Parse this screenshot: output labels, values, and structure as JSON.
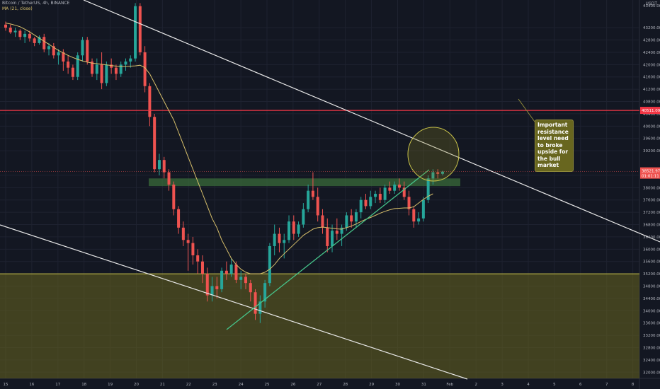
{
  "header": {
    "symbol_line": "Bitcoin / TetherUS, 4h, BINANCE",
    "indicator_line": "MA (21, close)"
  },
  "price_axis": {
    "unit": "USDT",
    "top_value": "43400.00"
  },
  "badges": {
    "resistance_price": "40511.09",
    "last_price": "38521.97",
    "countdown": "01:01:11"
  },
  "annotation": {
    "lines": [
      "Important",
      "resistance",
      "level need",
      "to broke",
      "upside for",
      "the bull",
      "market"
    ]
  },
  "colors": {
    "background": "#131722",
    "up": "#26a69a",
    "down": "#ef5350",
    "ma": "#d8c06b",
    "trendline": "#e8e8e8",
    "support_trend": "#46c48a",
    "resistance_line": "#f23645",
    "zone_fill": "#67651f",
    "demand_box": "#3a6b3a",
    "note_bg": "#68661f"
  },
  "chart_data": {
    "type": "candlestick",
    "symbol": "BTCUSDT",
    "timeframe": "4h",
    "exchange": "BINANCE",
    "y_range": [
      31800,
      44100
    ],
    "y_ticks": [
      32000,
      32400,
      32800,
      33200,
      33600,
      34000,
      34400,
      34800,
      35200,
      35600,
      36000,
      36400,
      36800,
      37200,
      37600,
      38000,
      38400,
      39200,
      39600,
      40000,
      40400,
      40800,
      41200,
      41600,
      42000,
      42400,
      42800,
      43200
    ],
    "x_tick_labels": [
      "15",
      "16",
      "17",
      "18",
      "19",
      "20",
      "21",
      "22",
      "23",
      "24",
      "25",
      "26",
      "27",
      "28",
      "29",
      "30",
      "31",
      "Feb",
      "2",
      "3",
      "4",
      "5",
      "6",
      "7",
      "8"
    ],
    "levels": {
      "resistance": 40511.09,
      "last_price": 38521.97
    },
    "zones": [
      {
        "name": "demand box",
        "from": 38050,
        "to": 38300
      },
      {
        "name": "support zone",
        "from": 31800,
        "to": 35200
      }
    ],
    "candles": [
      [
        43300,
        43400,
        43100,
        43200
      ],
      [
        43200,
        43300,
        43000,
        43050
      ],
      [
        43050,
        43200,
        42900,
        43100
      ],
      [
        43100,
        43150,
        42800,
        42900
      ],
      [
        42900,
        43100,
        42700,
        43000
      ],
      [
        43000,
        43100,
        42750,
        42850
      ],
      [
        42850,
        42900,
        42600,
        42700
      ],
      [
        42700,
        42950,
        42650,
        42900
      ],
      [
        42900,
        43000,
        42400,
        42500
      ],
      [
        42500,
        42700,
        42300,
        42600
      ],
      [
        42600,
        42700,
        42200,
        42300
      ],
      [
        42300,
        42500,
        42000,
        42400
      ],
      [
        42400,
        42500,
        41800,
        42100
      ],
      [
        42100,
        42300,
        41700,
        41900
      ],
      [
        41900,
        42000,
        41500,
        41600
      ],
      [
        41600,
        42400,
        41500,
        42300
      ],
      [
        42300,
        42900,
        42100,
        42800
      ],
      [
        42800,
        42900,
        42000,
        42100
      ],
      [
        42100,
        42200,
        41600,
        41700
      ],
      [
        41700,
        42200,
        41500,
        42000
      ],
      [
        42000,
        42400,
        41200,
        41400
      ],
      [
        41400,
        42100,
        41300,
        42000
      ],
      [
        42000,
        42200,
        41700,
        41900
      ],
      [
        41900,
        42000,
        41500,
        41700
      ],
      [
        41700,
        42100,
        41600,
        42000
      ],
      [
        42000,
        42200,
        41800,
        42100
      ],
      [
        42100,
        42300,
        41900,
        42200
      ],
      [
        42200,
        44000,
        42100,
        43900
      ],
      [
        43900,
        44000,
        42300,
        42400
      ],
      [
        42400,
        42600,
        41100,
        41300
      ],
      [
        41300,
        41400,
        40000,
        40300
      ],
      [
        40300,
        40400,
        38500,
        38600
      ],
      [
        38600,
        39100,
        38400,
        38900
      ],
      [
        38900,
        39000,
        38300,
        38500
      ],
      [
        38500,
        38600,
        37900,
        38100
      ],
      [
        38100,
        38200,
        37100,
        37300
      ],
      [
        37300,
        37400,
        36500,
        36700
      ],
      [
        36700,
        36900,
        36100,
        36300
      ],
      [
        36300,
        36500,
        35300,
        36200
      ],
      [
        36200,
        36400,
        35500,
        35800
      ],
      [
        35800,
        36000,
        35200,
        35600
      ],
      [
        35600,
        35800,
        34900,
        35200
      ],
      [
        35200,
        35400,
        34300,
        34500
      ],
      [
        34500,
        35100,
        34300,
        34800
      ],
      [
        34800,
        35100,
        34400,
        34700
      ],
      [
        34700,
        35400,
        34600,
        35300
      ],
      [
        35300,
        35600,
        35000,
        35200
      ],
      [
        35200,
        35700,
        35100,
        35500
      ],
      [
        35500,
        35600,
        34900,
        35000
      ],
      [
        35000,
        35300,
        34700,
        35100
      ],
      [
        35100,
        35200,
        34700,
        34900
      ],
      [
        34900,
        35000,
        34300,
        34600
      ],
      [
        34600,
        34700,
        33700,
        33900
      ],
      [
        33900,
        34500,
        33600,
        34300
      ],
      [
        34300,
        35000,
        34100,
        34900
      ],
      [
        34900,
        36200,
        34800,
        36100
      ],
      [
        36100,
        36800,
        35800,
        36500
      ],
      [
        36500,
        36700,
        35900,
        36200
      ],
      [
        36200,
        36500,
        35700,
        36300
      ],
      [
        36300,
        37100,
        36200,
        36900
      ],
      [
        36900,
        37100,
        36300,
        36500
      ],
      [
        36500,
        36900,
        36400,
        36800
      ],
      [
        36800,
        37500,
        36700,
        37300
      ],
      [
        37300,
        38100,
        37200,
        37900
      ],
      [
        37900,
        38500,
        37600,
        37700
      ],
      [
        37700,
        38000,
        36900,
        37100
      ],
      [
        37100,
        37300,
        36500,
        36700
      ],
      [
        36700,
        37000,
        35900,
        36100
      ],
      [
        36100,
        36800,
        35900,
        36600
      ],
      [
        36600,
        37000,
        36300,
        36500
      ],
      [
        36500,
        36800,
        36100,
        36700
      ],
      [
        36700,
        37200,
        36600,
        37100
      ],
      [
        37100,
        37300,
        36700,
        36900
      ],
      [
        36900,
        37300,
        36700,
        37200
      ],
      [
        37200,
        37700,
        37000,
        37600
      ],
      [
        37600,
        37800,
        37300,
        37400
      ],
      [
        37400,
        37900,
        37300,
        37700
      ],
      [
        37700,
        37900,
        37500,
        37800
      ],
      [
        37800,
        38000,
        37500,
        37600
      ],
      [
        37600,
        38100,
        37500,
        38000
      ],
      [
        38000,
        38200,
        37800,
        37900
      ],
      [
        37900,
        38200,
        37800,
        38100
      ],
      [
        38100,
        38300,
        37900,
        38000
      ],
      [
        38000,
        38200,
        37600,
        37700
      ],
      [
        37700,
        37900,
        37100,
        37300
      ],
      [
        37300,
        37400,
        36700,
        36900
      ],
      [
        36900,
        37200,
        36800,
        37000
      ],
      [
        37000,
        37700,
        36900,
        37600
      ],
      [
        37600,
        38400,
        37500,
        38300
      ],
      [
        38300,
        38600,
        38100,
        38500
      ],
      [
        38500,
        38600,
        38300,
        38450
      ],
      [
        38450,
        38550,
        38400,
        38522
      ]
    ],
    "ma": {
      "name": "MA 21",
      "values": [
        43350,
        43320,
        43280,
        43230,
        43150,
        43060,
        42960,
        42860,
        42760,
        42660,
        42560,
        42460,
        42380,
        42300,
        42230,
        42170,
        42120,
        42080,
        42050,
        42030,
        42010,
        41990,
        41970,
        41950,
        41940,
        41940,
        41950,
        41960,
        41980,
        41900,
        41700,
        41400,
        41100,
        40800,
        40500,
        40200,
        39800,
        39400,
        39000,
        38600,
        38200,
        37800,
        37400,
        37000,
        36700,
        36300,
        36000,
        35700,
        35500,
        35350,
        35250,
        35200,
        35200,
        35200,
        35250,
        35350,
        35500,
        35700,
        35850,
        36000,
        36150,
        36300,
        36450,
        36550,
        36650,
        36700,
        36720,
        36700,
        36680,
        36660,
        36650,
        36700,
        36750,
        36820,
        36900,
        36970,
        37030,
        37100,
        37170,
        37230,
        37280,
        37320,
        37330,
        37340,
        37340,
        37380,
        37500,
        37620,
        37720,
        37800
      ]
    }
  }
}
